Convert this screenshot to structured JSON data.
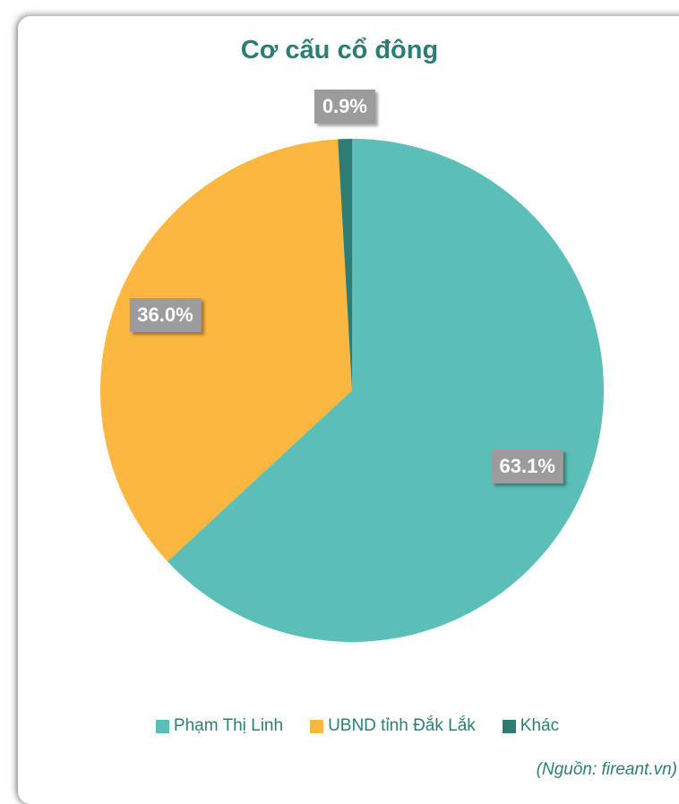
{
  "chart_data": {
    "type": "pie",
    "title": "Cơ cấu cổ đông",
    "slices": [
      {
        "name": "Phạm Thị Linh",
        "value": 63.1,
        "label": "63.1%",
        "color": "#5bbfb8"
      },
      {
        "name": "UBND tỉnh Đắk Lắk",
        "value": 36.0,
        "label": "36.0%",
        "color": "#fbb73f"
      },
      {
        "name": "Khác",
        "value": 0.9,
        "label": "0.9%",
        "color": "#2e7d74"
      }
    ],
    "legend_position": "bottom",
    "source": "(Nguồn: fireant.vn)"
  }
}
